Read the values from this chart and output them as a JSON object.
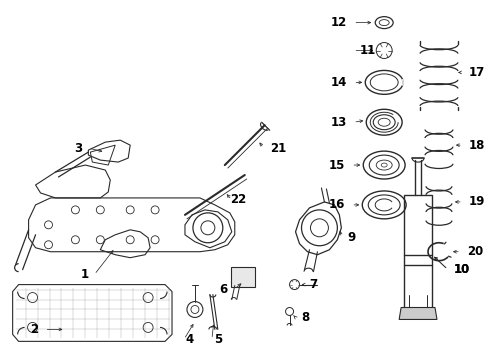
{
  "bg_color": "#ffffff",
  "lc": "#2a2a2a",
  "figsize": [
    4.89,
    3.6
  ],
  "dpi": 100,
  "font_size": 7.5,
  "font_size_large": 8.5
}
